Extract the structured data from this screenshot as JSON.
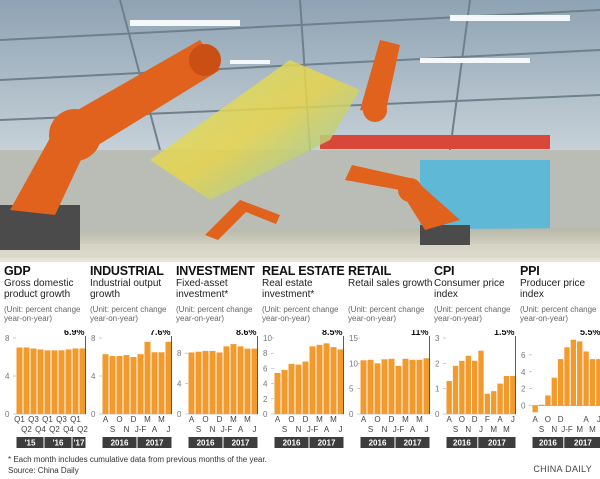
{
  "chart_data": [
    {
      "type": "bar",
      "title": "GDP",
      "subtitle": "Gross domestic product growth",
      "unit": "(Unit: percent change year-on-year)",
      "categories": [
        "Q1",
        "Q2",
        "Q3",
        "Q4",
        "Q1",
        "Q2",
        "Q3",
        "Q4",
        "Q1",
        "Q2"
      ],
      "groups": [
        "'15",
        "'16",
        "'17"
      ],
      "values": [
        7.0,
        7.0,
        6.9,
        6.8,
        6.7,
        6.7,
        6.7,
        6.8,
        6.9,
        6.9
      ],
      "value_labels": [
        null,
        null,
        null,
        null,
        null,
        null,
        null,
        null,
        null,
        "6.9%"
      ],
      "ylim": [
        0,
        8
      ],
      "yticks": [
        0,
        4,
        8
      ],
      "color": "#f39a2c"
    },
    {
      "type": "bar",
      "title": "INDUSTRIAL",
      "subtitle": "Industrial output growth",
      "unit": "(Unit: percent change year-on-year)",
      "categories": [
        "A",
        "S",
        "O",
        "N",
        "D",
        "J-F",
        "M",
        "A",
        "M",
        "J"
      ],
      "groups": [
        "2016",
        "2017"
      ],
      "values": [
        6.3,
        6.1,
        6.1,
        6.2,
        6.0,
        6.3,
        7.6,
        6.5,
        6.5,
        7.6
      ],
      "value_labels": [
        null,
        null,
        null,
        null,
        null,
        null,
        null,
        null,
        null,
        "7.6%"
      ],
      "ylim": [
        0,
        8
      ],
      "yticks": [
        0,
        4,
        8
      ],
      "color": "#f39a2c"
    },
    {
      "type": "bar",
      "title": "INVESTMENT",
      "subtitle": "Fixed-asset investment*",
      "unit": "(Unit: percent change year-on-year)",
      "categories": [
        "A",
        "S",
        "O",
        "N",
        "D",
        "J-F",
        "M",
        "A",
        "M",
        "J"
      ],
      "groups": [
        "2016",
        "2017"
      ],
      "values": [
        8.1,
        8.2,
        8.3,
        8.3,
        8.1,
        8.9,
        9.2,
        8.9,
        8.6,
        8.6
      ],
      "value_labels": [
        null,
        null,
        null,
        null,
        null,
        null,
        null,
        null,
        null,
        "8.6%"
      ],
      "ylim": [
        0,
        10
      ],
      "yticks": [
        0,
        4,
        8
      ],
      "color": "#f39a2c"
    },
    {
      "type": "bar",
      "title": "REAL ESTATE",
      "subtitle": "Real estate investment*",
      "unit": "(Unit: percent change year-on-year)",
      "categories": [
        "A",
        "S",
        "O",
        "N",
        "D",
        "J-F",
        "M",
        "A",
        "M",
        "J"
      ],
      "groups": [
        "2016",
        "2017"
      ],
      "values": [
        5.4,
        5.8,
        6.6,
        6.5,
        6.9,
        8.9,
        9.1,
        9.3,
        8.8,
        8.5
      ],
      "value_labels": [
        null,
        null,
        null,
        null,
        null,
        null,
        null,
        null,
        null,
        "8.5%"
      ],
      "ylim": [
        0,
        10
      ],
      "yticks": [
        0,
        2,
        4,
        6,
        8,
        10
      ],
      "color": "#f39a2c"
    },
    {
      "type": "bar",
      "title": "RETAIL",
      "subtitle": "Retail sales growth",
      "unit": "(Unit: percent change year-on-year)",
      "categories": [
        "A",
        "S",
        "O",
        "N",
        "D",
        "J-F",
        "M",
        "A",
        "M",
        "J"
      ],
      "groups": [
        "2016",
        "2017"
      ],
      "values": [
        10.6,
        10.7,
        10.0,
        10.8,
        10.9,
        9.5,
        10.9,
        10.7,
        10.7,
        11.0
      ],
      "value_labels": [
        null,
        null,
        null,
        null,
        null,
        null,
        null,
        null,
        null,
        "11%"
      ],
      "ylim": [
        0,
        15
      ],
      "yticks": [
        0,
        5,
        10,
        15
      ],
      "color": "#f39a2c"
    },
    {
      "type": "bar",
      "title": "CPI",
      "subtitle": "Consumer price index",
      "unit": "(Unit: percent change year-on-year)",
      "categories": [
        "A",
        "S",
        "O",
        "N",
        "D",
        "J",
        "F",
        "M",
        "A",
        "M",
        "J"
      ],
      "groups": [
        "2016",
        "2017"
      ],
      "values": [
        1.3,
        1.9,
        2.1,
        2.3,
        2.1,
        2.5,
        0.8,
        0.9,
        1.2,
        1.5,
        1.5
      ],
      "value_labels": [
        null,
        null,
        null,
        null,
        null,
        null,
        null,
        null,
        null,
        null,
        "1.5%"
      ],
      "ylim": [
        0,
        3
      ],
      "yticks": [
        0,
        1,
        2,
        3
      ],
      "color": "#f39a2c"
    },
    {
      "type": "bar",
      "title": "PPI",
      "subtitle": "Producer price index",
      "unit": "(Unit: percent change year-on-year)",
      "categories": [
        "A",
        "S",
        "O",
        "N",
        "D",
        "J-F",
        null,
        "M",
        "A",
        "M",
        "J"
      ],
      "groups": [
        "2016",
        "2017"
      ],
      "values": [
        -0.8,
        0.1,
        1.2,
        3.3,
        5.5,
        6.9,
        7.8,
        7.6,
        6.4,
        5.5,
        5.5
      ],
      "value_labels": [
        null,
        null,
        null,
        null,
        null,
        null,
        null,
        null,
        null,
        null,
        "5.5%"
      ],
      "ylim": [
        -1,
        8
      ],
      "yticks": [
        0,
        2,
        4,
        6
      ],
      "color": "#f39a2c"
    }
  ],
  "footnote": "* Each month includes cumulative data from previous months of the year.",
  "source": "Source: China Daily",
  "brand": "CHINA DAILY"
}
